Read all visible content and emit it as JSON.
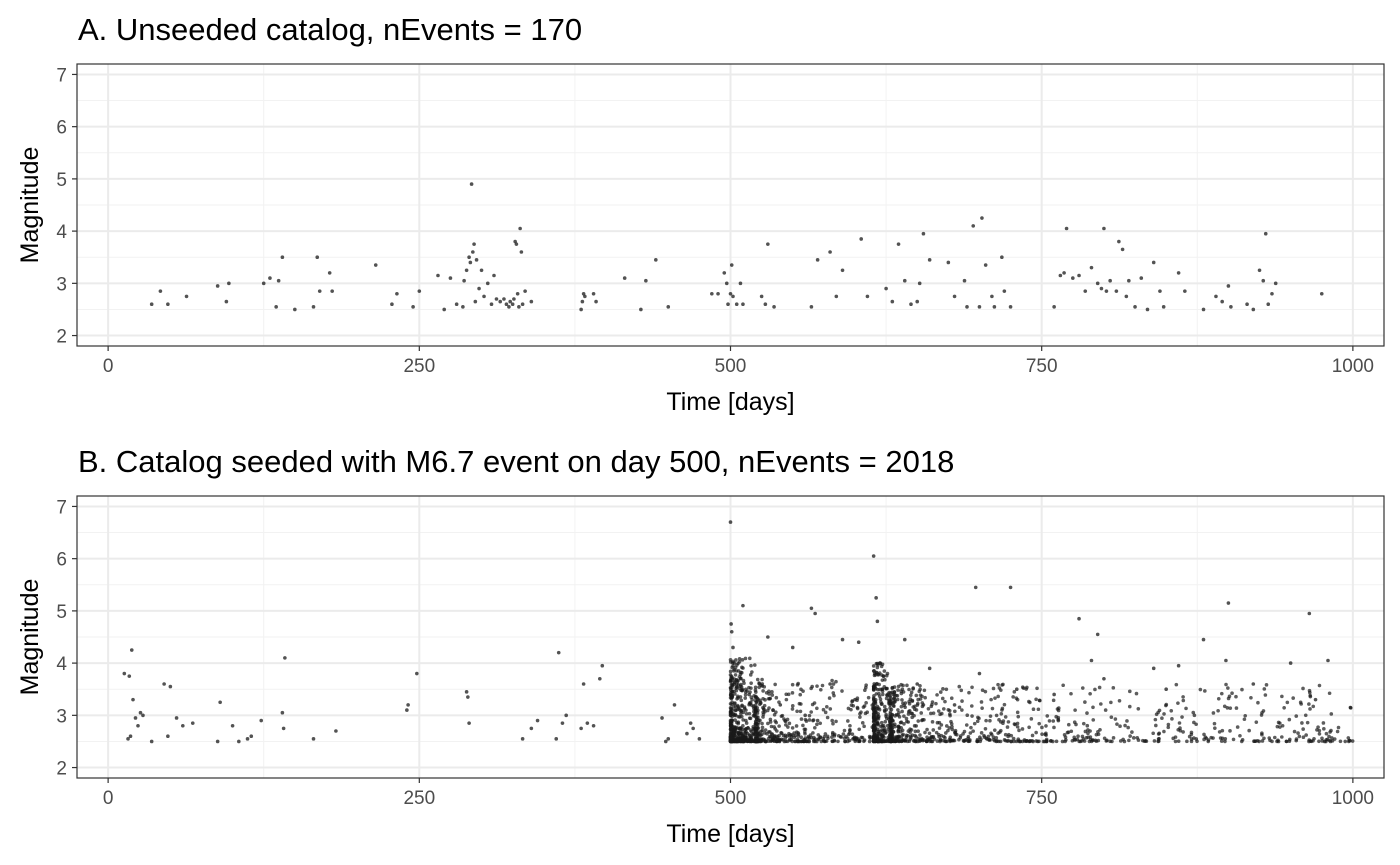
{
  "colors": {
    "point": "#1a1a1a",
    "grid_major": "#ebebeb",
    "grid_minor": "#f2f2f2",
    "frame": "#333333",
    "tick_text": "#4d4d4d"
  },
  "chart_data": [
    {
      "type": "scatter",
      "title": "A.  Unseeded catalog, nEvents = 170",
      "xlabel": "Time [days]",
      "ylabel": "Magnitude",
      "xlim": [
        -25,
        1025
      ],
      "ylim": [
        1.8,
        7.2
      ],
      "xticks": [
        0,
        250,
        500,
        750,
        1000
      ],
      "yticks": [
        2,
        3,
        4,
        5,
        6,
        7
      ],
      "grid": true,
      "n_events": 170,
      "x": [
        35,
        42,
        48,
        63,
        88,
        95,
        97,
        125,
        130,
        135,
        137,
        140,
        150,
        165,
        168,
        170,
        178,
        180,
        215,
        228,
        232,
        245,
        250,
        265,
        270,
        275,
        280,
        285,
        286,
        288,
        290,
        291,
        292,
        293,
        294,
        295,
        296,
        298,
        300,
        302,
        305,
        308,
        310,
        312,
        315,
        318,
        320,
        322,
        323,
        325,
        326,
        327,
        328,
        329,
        330,
        331,
        332,
        333,
        335,
        340,
        380,
        381,
        382,
        383,
        390,
        392,
        415,
        428,
        432,
        440,
        450,
        485,
        490,
        495,
        497,
        498,
        500,
        501,
        502,
        505,
        508,
        510,
        525,
        528,
        530,
        535,
        565,
        570,
        580,
        585,
        590,
        605,
        610,
        625,
        630,
        635,
        640,
        645,
        650,
        652,
        655,
        660,
        675,
        680,
        688,
        690,
        695,
        700,
        702,
        705,
        710,
        712,
        718,
        720,
        725,
        760,
        765,
        768,
        770,
        775,
        780,
        785,
        790,
        795,
        798,
        800,
        802,
        805,
        810,
        812,
        815,
        818,
        820,
        825,
        830,
        835,
        840,
        845,
        848,
        860,
        865,
        880,
        890,
        895,
        900,
        902,
        915,
        920,
        925,
        928,
        930,
        932,
        935,
        938,
        975
      ],
      "y": [
        2.6,
        2.85,
        2.6,
        2.75,
        2.95,
        2.65,
        3.0,
        3.0,
        3.1,
        2.55,
        3.05,
        3.5,
        2.5,
        2.55,
        3.5,
        2.85,
        3.2,
        2.85,
        3.35,
        2.6,
        2.8,
        2.55,
        2.85,
        3.15,
        2.5,
        3.1,
        2.6,
        2.55,
        3.05,
        3.25,
        3.5,
        3.4,
        4.9,
        3.6,
        3.75,
        2.65,
        3.45,
        2.9,
        3.25,
        2.75,
        3.0,
        2.6,
        3.15,
        2.7,
        2.65,
        2.7,
        2.6,
        2.55,
        2.65,
        2.6,
        2.7,
        3.8,
        3.75,
        2.8,
        2.55,
        4.05,
        3.6,
        2.6,
        2.85,
        2.65,
        2.5,
        2.65,
        2.8,
        2.75,
        2.8,
        2.65,
        3.1,
        2.5,
        3.05,
        3.45,
        2.55,
        2.8,
        2.8,
        3.2,
        3.0,
        2.6,
        2.8,
        3.35,
        2.75,
        2.6,
        3.0,
        2.6,
        2.75,
        2.6,
        3.75,
        2.55,
        2.55,
        3.45,
        3.6,
        2.75,
        3.25,
        3.85,
        2.75,
        2.9,
        2.65,
        3.75,
        3.05,
        2.6,
        2.65,
        3.0,
        3.95,
        3.45,
        3.4,
        2.75,
        3.05,
        2.55,
        4.1,
        2.55,
        4.25,
        3.35,
        2.75,
        2.55,
        3.5,
        2.85,
        2.55,
        2.55,
        3.15,
        3.2,
        4.05,
        3.1,
        3.15,
        2.85,
        3.3,
        3.0,
        2.9,
        4.05,
        2.85,
        3.05,
        2.85,
        3.8,
        3.65,
        2.75,
        3.05,
        2.55,
        3.1,
        2.5,
        3.4,
        2.85,
        2.55,
        3.2,
        2.85,
        2.5,
        2.75,
        2.65,
        2.95,
        2.55,
        2.6,
        2.5,
        3.25,
        3.05,
        3.95,
        2.6,
        2.8,
        3.0,
        2.8
      ]
    },
    {
      "type": "scatter",
      "title": "B.  Catalog seeded with M6.7 event on day 500, nEvents = 2018",
      "xlabel": "Time [days]",
      "ylabel": "Magnitude",
      "xlim": [
        -25,
        1025
      ],
      "ylim": [
        1.8,
        7.2
      ],
      "xticks": [
        0,
        250,
        500,
        750,
        1000
      ],
      "yticks": [
        2,
        3,
        4,
        5,
        6,
        7
      ],
      "grid": true,
      "n_events": 2018,
      "x": [
        13,
        16,
        17,
        18,
        19,
        20,
        22,
        24,
        26,
        28,
        35,
        45,
        48,
        50,
        55,
        60,
        68,
        88,
        90,
        100,
        105,
        112,
        115,
        123,
        140,
        141,
        142,
        165,
        183,
        240,
        241,
        248,
        288,
        289,
        290,
        333,
        340,
        345,
        360,
        362,
        365,
        368,
        380,
        382,
        385,
        390,
        395,
        397,
        445,
        448,
        450,
        455,
        465,
        468,
        470,
        475,
        500,
        500.5,
        501,
        502,
        503,
        505,
        510,
        515,
        520,
        530,
        540,
        550,
        560,
        565,
        568,
        570,
        580,
        590,
        600,
        603,
        615,
        617,
        618,
        620,
        622,
        640,
        650,
        655,
        660,
        680,
        697,
        700,
        725,
        730,
        760,
        780,
        790,
        795,
        800,
        840,
        850,
        860,
        880,
        898,
        900,
        920,
        950,
        965,
        970,
        980,
        998
      ],
      "y": [
        3.8,
        2.55,
        3.75,
        2.6,
        4.25,
        3.3,
        2.95,
        2.8,
        3.05,
        3.0,
        2.5,
        3.6,
        2.6,
        3.55,
        2.95,
        2.8,
        2.85,
        2.5,
        3.25,
        2.8,
        2.5,
        2.55,
        2.6,
        2.9,
        3.05,
        2.75,
        4.1,
        2.55,
        2.7,
        3.1,
        3.2,
        3.8,
        3.45,
        3.35,
        2.85,
        2.55,
        2.75,
        2.9,
        2.55,
        4.2,
        2.85,
        3.0,
        2.75,
        3.6,
        2.85,
        2.8,
        3.7,
        3.95,
        2.95,
        2.5,
        2.55,
        3.2,
        2.65,
        2.85,
        2.75,
        2.55,
        6.7,
        4.75,
        4.6,
        4.3,
        4.0,
        3.6,
        5.1,
        3.4,
        3.1,
        4.5,
        3.2,
        4.3,
        3.0,
        5.05,
        4.95,
        2.9,
        3.6,
        4.45,
        3.3,
        4.4,
        6.05,
        5.25,
        4.8,
        4.0,
        3.5,
        4.45,
        3.6,
        3.2,
        3.9,
        3.2,
        5.45,
        3.8,
        5.45,
        3.5,
        3.4,
        4.85,
        4.05,
        4.55,
        3.7,
        3.9,
        3.5,
        3.95,
        4.45,
        4.05,
        5.15,
        3.6,
        4.0,
        4.95,
        3.3,
        4.05,
        3.15
      ],
      "dense_ranges": [
        {
          "x_from": 500,
          "x_to": 520,
          "y_from": 2.5,
          "y_to": 4.1,
          "count": 420
        },
        {
          "x_from": 520,
          "x_to": 615,
          "y_from": 2.5,
          "y_to": 3.7,
          "count": 430
        },
        {
          "x_from": 615,
          "x_to": 628,
          "y_from": 2.5,
          "y_to": 4.0,
          "count": 260
        },
        {
          "x_from": 628,
          "x_to": 1000,
          "y_from": 2.5,
          "y_to": 3.6,
          "count": 800
        }
      ]
    }
  ]
}
